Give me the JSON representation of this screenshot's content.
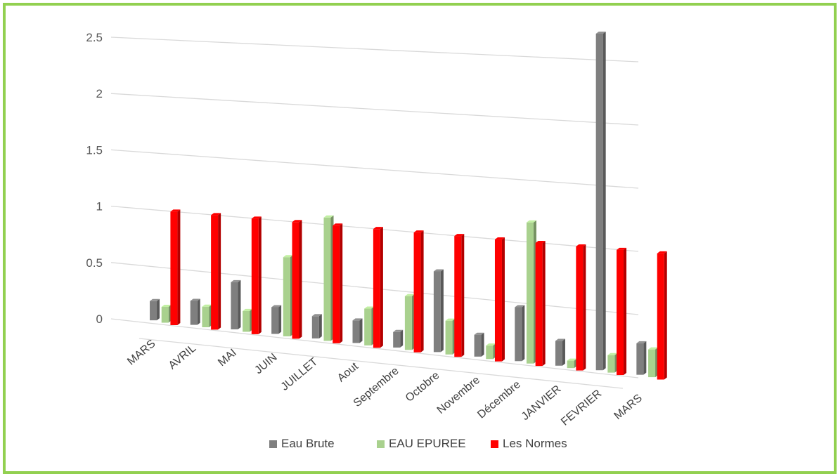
{
  "chart_data": {
    "type": "bar",
    "style": "3d-clustered-column",
    "title": "",
    "xlabel": "",
    "ylabel": "",
    "ylim": [
      0,
      2.5
    ],
    "yticks": [
      "0",
      "0.5",
      "1",
      "1.5",
      "2",
      "2.5"
    ],
    "grid": true,
    "legend_position": "bottom",
    "categories": [
      "MARS",
      "AVRIL",
      "MAI",
      "JUIN",
      "JUILLET",
      "Aout",
      "Septembre",
      "Octobre",
      "Novembre",
      "Décembre",
      "JANVIER",
      "FEVRIER",
      "MARS"
    ],
    "series": [
      {
        "name": "Eau Brute",
        "color": "#7f7f7f",
        "values": [
          0.17,
          0.21,
          0.41,
          0.23,
          0.19,
          0.19,
          0.13,
          0.67,
          0.18,
          0.44,
          0.2,
          2.7,
          0.25
        ]
      },
      {
        "name": "EAU EPUREE",
        "color": "#a9d18e",
        "values": [
          0.14,
          0.18,
          0.18,
          0.68,
          1.05,
          0.31,
          0.45,
          0.28,
          0.11,
          1.15,
          0.06,
          0.14,
          0.22
        ]
      },
      {
        "name": "Les Normes",
        "color": "#ff0000",
        "values": [
          1.0,
          1.0,
          1.0,
          1.0,
          1.0,
          1.0,
          1.0,
          1.0,
          1.0,
          1.0,
          1.0,
          1.0,
          1.0
        ]
      }
    ]
  }
}
